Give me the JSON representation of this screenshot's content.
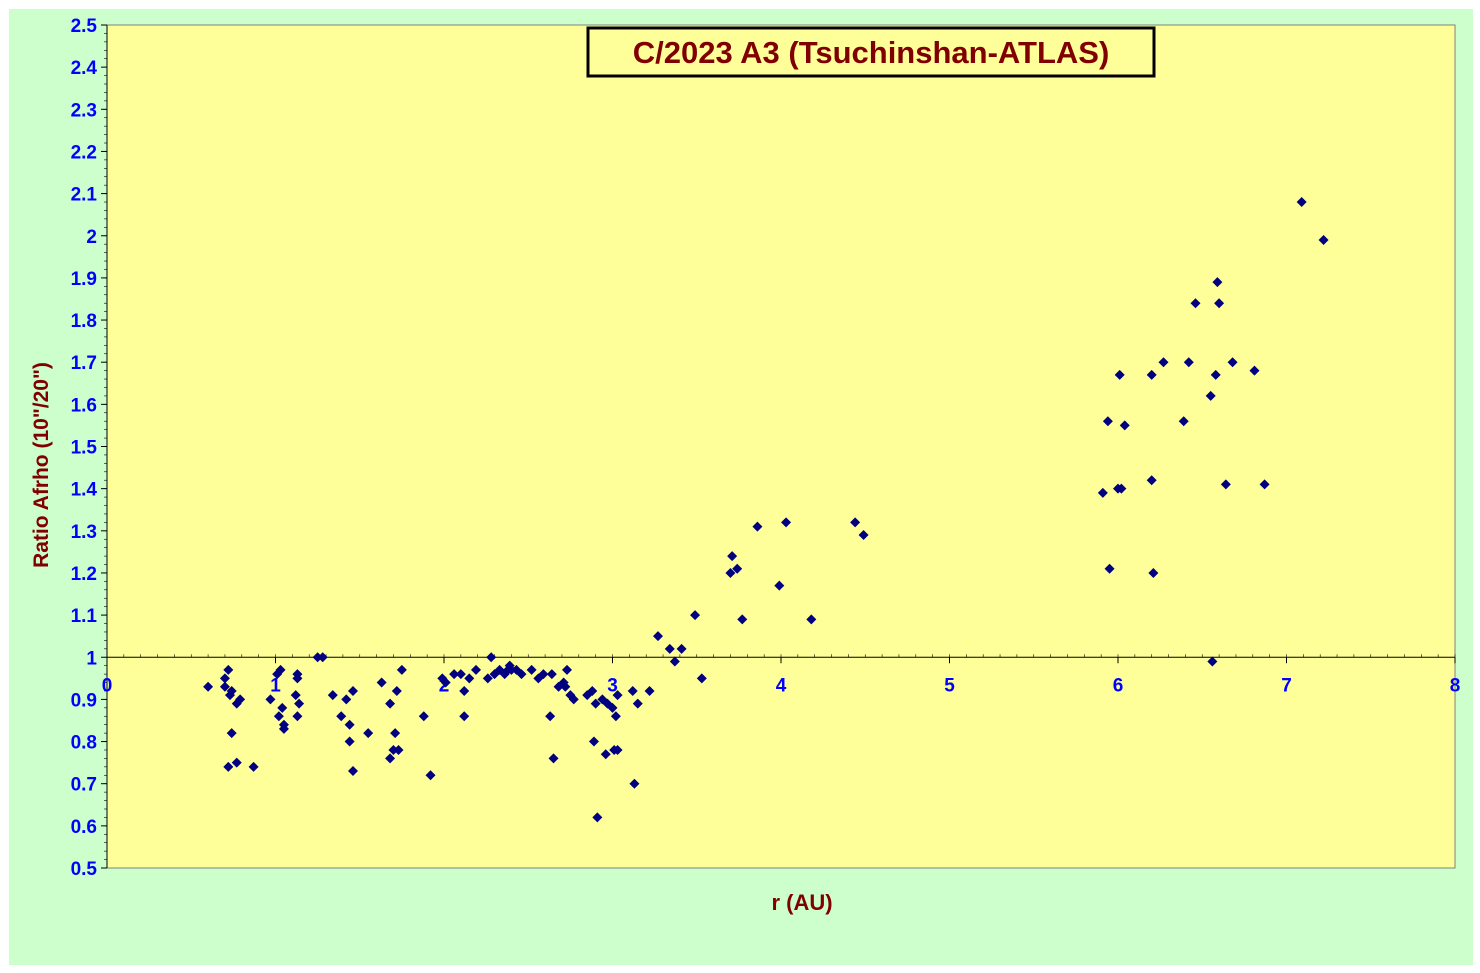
{
  "colors": {
    "outer_background": "#ccffcc",
    "plot_background": "#ffff99",
    "marker": "#000080",
    "tick_label": "#0000ff",
    "axis_title": "#800000",
    "title_text": "#800000",
    "title_box_fill": "#ffff99",
    "title_box_border": "#000000"
  },
  "chart_data": {
    "type": "scatter",
    "title": "C/2023 A3 (Tsuchinshan-ATLAS)",
    "xlabel": "r (AU)",
    "ylabel": "Ratio Afrho (10\"/20\")",
    "xlim": [
      0,
      8
    ],
    "ylim": [
      0.5,
      2.5
    ],
    "x_axis_crosses_y_at": 1.0,
    "x_ticks": [
      "0",
      "1",
      "2",
      "3",
      "4",
      "5",
      "6",
      "7",
      "8"
    ],
    "y_ticks": [
      "0.5",
      "0.6",
      "0.7",
      "0.8",
      "0.9",
      "1",
      "1.1",
      "1.2",
      "1.3",
      "1.4",
      "1.5",
      "1.6",
      "1.7",
      "1.8",
      "1.9",
      "2",
      "2.1",
      "2.2",
      "2.3",
      "2.4",
      "2.5"
    ],
    "grid": false,
    "legend": "none",
    "marker": "diamond",
    "points": [
      [
        0.6,
        0.93
      ],
      [
        0.7,
        0.95
      ],
      [
        0.7,
        0.93
      ],
      [
        0.72,
        0.97
      ],
      [
        0.73,
        0.91
      ],
      [
        0.74,
        0.92
      ],
      [
        0.77,
        0.89
      ],
      [
        0.79,
        0.9
      ],
      [
        0.74,
        0.82
      ],
      [
        0.72,
        0.74
      ],
      [
        0.77,
        0.75
      ],
      [
        0.87,
        0.74
      ],
      [
        0.97,
        0.9
      ],
      [
        1.01,
        0.96
      ],
      [
        1.03,
        0.97
      ],
      [
        1.02,
        0.86
      ],
      [
        1.04,
        0.88
      ],
      [
        1.05,
        0.84
      ],
      [
        1.05,
        0.83
      ],
      [
        1.12,
        0.91
      ],
      [
        1.13,
        0.96
      ],
      [
        1.13,
        0.95
      ],
      [
        1.14,
        0.89
      ],
      [
        1.13,
        0.86
      ],
      [
        1.25,
        1.0
      ],
      [
        1.28,
        1.0
      ],
      [
        1.34,
        0.91
      ],
      [
        1.39,
        0.86
      ],
      [
        1.42,
        0.9
      ],
      [
        1.44,
        0.84
      ],
      [
        1.44,
        0.8
      ],
      [
        1.46,
        0.92
      ],
      [
        1.46,
        0.73
      ],
      [
        1.55,
        0.82
      ],
      [
        1.63,
        0.94
      ],
      [
        1.68,
        0.89
      ],
      [
        1.68,
        0.76
      ],
      [
        1.7,
        0.78
      ],
      [
        1.71,
        0.82
      ],
      [
        1.72,
        0.92
      ],
      [
        1.73,
        0.78
      ],
      [
        1.75,
        0.97
      ],
      [
        1.88,
        0.86
      ],
      [
        1.92,
        0.72
      ],
      [
        1.99,
        0.95
      ],
      [
        2.01,
        0.94
      ],
      [
        2.06,
        0.96
      ],
      [
        2.1,
        0.96
      ],
      [
        2.12,
        0.92
      ],
      [
        2.12,
        0.86
      ],
      [
        2.15,
        0.95
      ],
      [
        2.19,
        0.97
      ],
      [
        2.26,
        0.95
      ],
      [
        2.28,
        1.0
      ],
      [
        2.3,
        0.96
      ],
      [
        2.33,
        0.97
      ],
      [
        2.36,
        0.96
      ],
      [
        2.38,
        0.97
      ],
      [
        2.39,
        0.98
      ],
      [
        2.4,
        0.97
      ],
      [
        2.43,
        0.97
      ],
      [
        2.46,
        0.96
      ],
      [
        2.52,
        0.97
      ],
      [
        2.56,
        0.95
      ],
      [
        2.59,
        0.96
      ],
      [
        2.63,
        0.86
      ],
      [
        2.64,
        0.96
      ],
      [
        2.65,
        0.76
      ],
      [
        2.68,
        0.93
      ],
      [
        2.71,
        0.94
      ],
      [
        2.72,
        0.93
      ],
      [
        2.73,
        0.97
      ],
      [
        2.75,
        0.91
      ],
      [
        2.77,
        0.9
      ],
      [
        2.85,
        0.91
      ],
      [
        2.88,
        0.92
      ],
      [
        2.89,
        0.8
      ],
      [
        2.9,
        0.89
      ],
      [
        2.91,
        0.62
      ],
      [
        2.94,
        0.9
      ],
      [
        2.96,
        0.77
      ],
      [
        2.97,
        0.89
      ],
      [
        3.0,
        0.88
      ],
      [
        3.01,
        0.78
      ],
      [
        3.02,
        0.86
      ],
      [
        3.03,
        0.78
      ],
      [
        3.03,
        0.91
      ],
      [
        3.12,
        0.92
      ],
      [
        3.13,
        0.7
      ],
      [
        3.15,
        0.89
      ],
      [
        3.22,
        0.92
      ],
      [
        3.27,
        1.05
      ],
      [
        3.34,
        1.02
      ],
      [
        3.37,
        0.99
      ],
      [
        3.41,
        1.02
      ],
      [
        3.49,
        1.1
      ],
      [
        3.53,
        0.95
      ],
      [
        3.7,
        1.2
      ],
      [
        3.71,
        1.24
      ],
      [
        3.74,
        1.21
      ],
      [
        3.77,
        1.09
      ],
      [
        3.86,
        1.31
      ],
      [
        3.99,
        1.17
      ],
      [
        4.03,
        1.32
      ],
      [
        4.18,
        1.09
      ],
      [
        4.44,
        1.32
      ],
      [
        4.49,
        1.29
      ],
      [
        5.91,
        1.39
      ],
      [
        5.94,
        1.56
      ],
      [
        5.95,
        1.21
      ],
      [
        6.0,
        1.4
      ],
      [
        6.01,
        1.67
      ],
      [
        6.02,
        1.4
      ],
      [
        6.04,
        1.55
      ],
      [
        6.2,
        1.67
      ],
      [
        6.2,
        1.42
      ],
      [
        6.21,
        1.2
      ],
      [
        6.27,
        1.7
      ],
      [
        6.39,
        1.56
      ],
      [
        6.42,
        1.7
      ],
      [
        6.46,
        1.84
      ],
      [
        6.55,
        1.62
      ],
      [
        6.56,
        0.99
      ],
      [
        6.58,
        1.67
      ],
      [
        6.59,
        1.89
      ],
      [
        6.6,
        1.84
      ],
      [
        6.64,
        1.41
      ],
      [
        6.68,
        1.7
      ],
      [
        6.81,
        1.68
      ],
      [
        6.87,
        1.41
      ],
      [
        7.09,
        2.08
      ],
      [
        7.22,
        1.99
      ]
    ]
  }
}
